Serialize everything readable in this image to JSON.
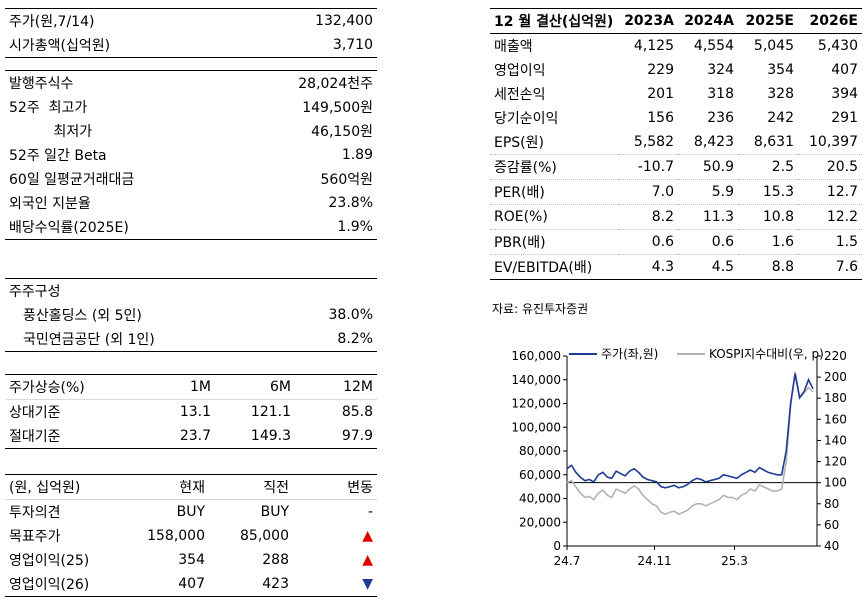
{
  "stock_info": {
    "rows": [
      [
        "주가(원,7/14)",
        "132,400"
      ],
      [
        "시가총액(십억원)",
        "3,710"
      ]
    ],
    "rows2": [
      [
        "발행주식수",
        "28,024천주"
      ],
      [
        "52주  최고가",
        "149,500원"
      ],
      [
        "          최저가",
        "46,150원"
      ],
      [
        "52주 일간 Beta",
        "1.89"
      ],
      [
        "60일 일평균거래대금",
        "560억원"
      ],
      [
        "외국인 지분율",
        "23.8%"
      ],
      [
        "배당수익률(2025E)",
        "1.9%"
      ]
    ]
  },
  "shareholders": {
    "title": "주주구성",
    "rows": [
      [
        "풍산홀딩스 (외 5인)",
        "38.0%"
      ],
      [
        "국민연금공단 (외 1인)",
        "8.2%"
      ]
    ]
  },
  "performance": {
    "header": [
      "주가상승(%)",
      "1M",
      "6M",
      "12M"
    ],
    "rows": [
      [
        "상대기준",
        "13.1",
        "121.1",
        "85.8"
      ],
      [
        "절대기준",
        "23.7",
        "149.3",
        "97.9"
      ]
    ]
  },
  "opinion": {
    "header": [
      "(원, 십억원)",
      "현재",
      "직전",
      "변동"
    ],
    "rows": [
      [
        "투자의견",
        "BUY",
        "BUY",
        "-"
      ],
      [
        "목표주가",
        "158,000",
        "85,000",
        "▲"
      ],
      [
        "영업이익(25)",
        "354",
        "288",
        "▲"
      ],
      [
        "영업이익(26)",
        "407",
        "423",
        "▼"
      ]
    ],
    "colors": {
      "up": "#e00000",
      "down": "#1f3a93"
    }
  },
  "financials": {
    "header": [
      "12 월 결산(십억원)",
      "2023A",
      "2024A",
      "2025E",
      "2026E"
    ],
    "rows": [
      [
        "매출액",
        "4,125",
        "4,554",
        "5,045",
        "5,430"
      ],
      [
        "영업이익",
        "229",
        "324",
        "354",
        "407"
      ],
      [
        "세전손익",
        "201",
        "318",
        "328",
        "394"
      ],
      [
        "당기순이익",
        "156",
        "236",
        "242",
        "291"
      ],
      [
        "EPS(원)",
        "5,582",
        "8,423",
        "8,631",
        "10,397"
      ],
      [
        "증감률(%)",
        "-10.7",
        "50.9",
        "2.5",
        "20.5"
      ],
      [
        "PER(배)",
        "7.0",
        "5.9",
        "15.3",
        "12.7"
      ],
      [
        "ROE(%)",
        "8.2",
        "11.3",
        "10.8",
        "12.2"
      ],
      [
        "PBR(배)",
        "0.6",
        "0.6",
        "1.6",
        "1.5"
      ],
      [
        "EV/EBITDA(배)",
        "4.3",
        "4.5",
        "8.8",
        "7.6"
      ]
    ]
  },
  "source": "자료: 유진투자증권",
  "chart_data": {
    "type": "line",
    "x_ticks": [
      "24.7",
      "24.11",
      "25.3"
    ],
    "y_left": {
      "min": 0,
      "max": 160000,
      "ticks": [
        "0",
        "20,000",
        "40,000",
        "60,000",
        "80,000",
        "100,000",
        "120,000",
        "140,000",
        "160,000"
      ]
    },
    "y_right": {
      "min": 40,
      "max": 220,
      "ticks": [
        "40",
        "60",
        "80",
        "100",
        "120",
        "140",
        "160",
        "180",
        "200",
        "220"
      ]
    },
    "series": [
      {
        "name": "주가(좌,원)",
        "axis": "left",
        "color": "#1f3a93",
        "values": [
          65000,
          68000,
          62000,
          58000,
          55000,
          56000,
          54000,
          60000,
          62000,
          58000,
          57000,
          63000,
          61000,
          59000,
          63000,
          65000,
          62000,
          58000,
          56000,
          55000,
          54000,
          50000,
          49000,
          50000,
          51000,
          49000,
          50000,
          52000,
          55000,
          57000,
          56000,
          54000,
          55000,
          56000,
          57000,
          60000,
          59000,
          58000,
          57000,
          60000,
          62000,
          64000,
          62000,
          66000,
          64000,
          62000,
          61000,
          60000,
          60000,
          80000,
          120000,
          145000,
          125000,
          130000,
          140000,
          132400
        ]
      },
      {
        "name": "KOSPI지수대비(우, p)",
        "axis": "right",
        "color": "#b3b3b3",
        "values": [
          100,
          102,
          96,
          90,
          86,
          87,
          84,
          90,
          93,
          88,
          86,
          94,
          92,
          90,
          94,
          97,
          94,
          88,
          84,
          80,
          78,
          72,
          70,
          72,
          73,
          70,
          72,
          74,
          78,
          80,
          80,
          78,
          80,
          82,
          84,
          88,
          86,
          86,
          84,
          88,
          90,
          94,
          92,
          98,
          96,
          94,
          92,
          92,
          94,
          120,
          172,
          205,
          180,
          185,
          190,
          186
        ]
      }
    ],
    "reference_line": {
      "axis": "right",
      "value": 100
    }
  }
}
